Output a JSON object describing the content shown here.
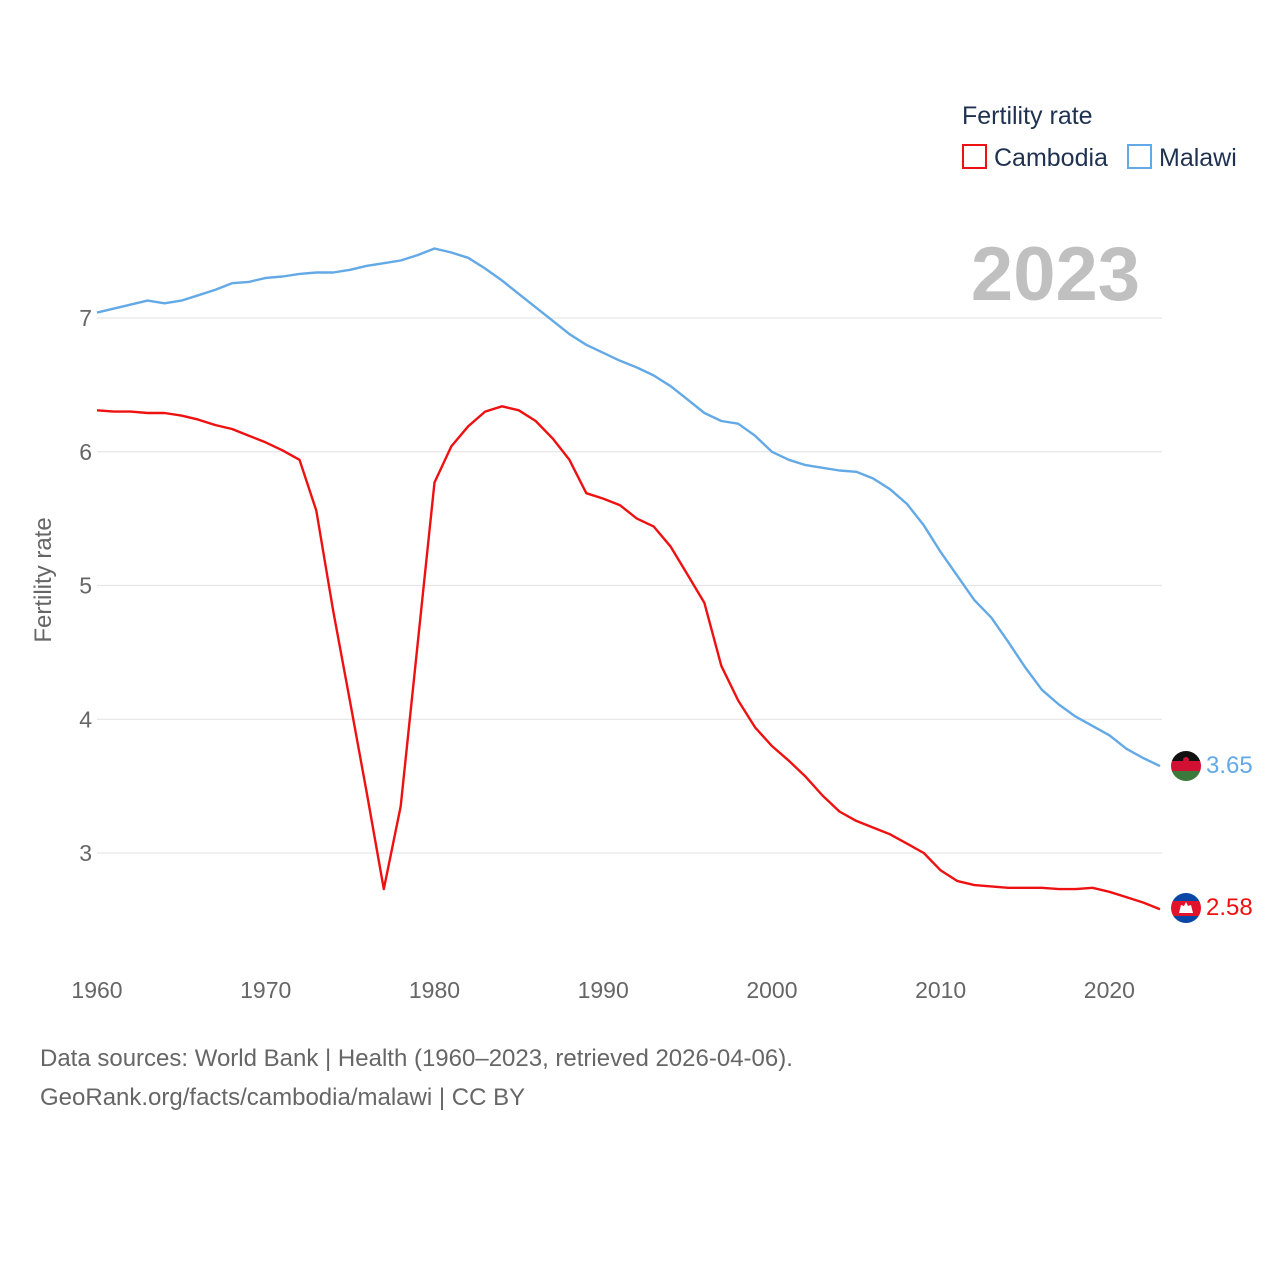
{
  "chart_data": {
    "type": "line",
    "year_label": "2023",
    "ylabel": "Fertility rate",
    "xlim": [
      1960,
      2023
    ],
    "ylim": [
      2.35,
      7.85
    ],
    "x_ticks": [
      1960,
      1970,
      1980,
      1990,
      2000,
      2010,
      2020
    ],
    "y_ticks": [
      3,
      4,
      5,
      6,
      7
    ],
    "legend": {
      "title": "Fertility rate",
      "position": "top-right"
    },
    "x": [
      1960,
      1961,
      1962,
      1963,
      1964,
      1965,
      1966,
      1967,
      1968,
      1969,
      1970,
      1971,
      1972,
      1973,
      1974,
      1975,
      1976,
      1977,
      1978,
      1979,
      1980,
      1981,
      1982,
      1983,
      1984,
      1985,
      1986,
      1987,
      1988,
      1989,
      1990,
      1991,
      1992,
      1993,
      1994,
      1995,
      1996,
      1997,
      1998,
      1999,
      2000,
      2001,
      2002,
      2003,
      2004,
      2005,
      2006,
      2007,
      2008,
      2009,
      2010,
      2011,
      2012,
      2013,
      2014,
      2015,
      2016,
      2017,
      2018,
      2019,
      2020,
      2021,
      2022,
      2023
    ],
    "series": [
      {
        "name": "Cambodia",
        "color": "#ee1111",
        "end_label": "2.58",
        "values": [
          6.31,
          6.3,
          6.3,
          6.29,
          6.29,
          6.27,
          6.24,
          6.2,
          6.17,
          6.12,
          6.07,
          6.01,
          5.94,
          5.56,
          4.81,
          4.13,
          3.44,
          2.73,
          3.35,
          4.56,
          5.77,
          6.04,
          6.19,
          6.3,
          6.34,
          6.31,
          6.23,
          6.1,
          5.94,
          5.69,
          5.65,
          5.6,
          5.5,
          5.44,
          5.29,
          5.08,
          4.87,
          4.4,
          4.14,
          3.94,
          3.8,
          3.69,
          3.57,
          3.43,
          3.31,
          3.24,
          3.19,
          3.14,
          3.07,
          3.0,
          2.87,
          2.79,
          2.76,
          2.75,
          2.74,
          2.74,
          2.74,
          2.73,
          2.73,
          2.74,
          2.71,
          2.67,
          2.63,
          2.58
        ]
      },
      {
        "name": "Malawi",
        "color": "#63a9e6",
        "end_label": "3.65",
        "values": [
          7.04,
          7.07,
          7.1,
          7.13,
          7.11,
          7.13,
          7.17,
          7.21,
          7.26,
          7.27,
          7.3,
          7.31,
          7.33,
          7.34,
          7.34,
          7.36,
          7.39,
          7.41,
          7.43,
          7.47,
          7.52,
          7.49,
          7.45,
          7.37,
          7.28,
          7.18,
          7.08,
          6.98,
          6.88,
          6.8,
          6.74,
          6.68,
          6.63,
          6.57,
          6.49,
          6.39,
          6.29,
          6.23,
          6.21,
          6.12,
          6.0,
          5.94,
          5.9,
          5.88,
          5.86,
          5.85,
          5.8,
          5.72,
          5.61,
          5.45,
          5.25,
          5.07,
          4.89,
          4.76,
          4.58,
          4.39,
          4.22,
          4.11,
          4.02,
          3.95,
          3.88,
          3.78,
          3.71,
          3.65
        ]
      }
    ]
  },
  "footer": {
    "source_line": "Data sources: World Bank | Health (1960–2023, retrieved 2026-04-06).",
    "credit_line": "GeoRank.org/facts/cambodia/malawi | CC BY"
  }
}
